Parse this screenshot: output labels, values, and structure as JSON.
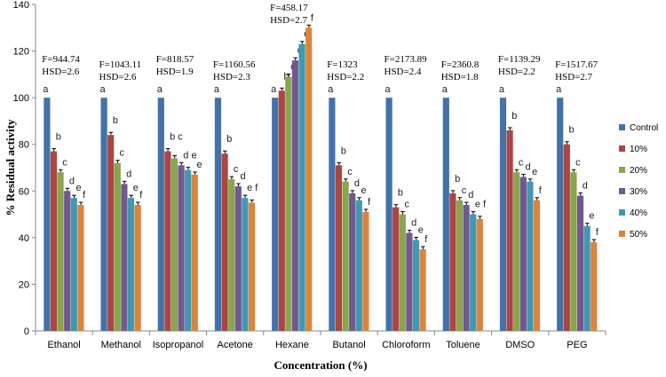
{
  "chart_data": {
    "type": "bar",
    "title": "",
    "xlabel": "Concentration (%)",
    "ylabel": "% Residual activity",
    "ylim": [
      0,
      140
    ],
    "yticks": [
      0,
      20,
      40,
      60,
      80,
      100,
      120,
      140
    ],
    "grid": false,
    "legend_position": "right",
    "categories": [
      "Ethanol",
      "Methanol",
      "Isopropanol",
      "Acetone",
      "Hexane",
      "Butanol",
      "Chloroform",
      "Toluene",
      "DMSO",
      "PEG"
    ],
    "series": [
      {
        "name": "Control",
        "color": "#4472A8",
        "values": [
          100,
          100,
          100,
          100,
          100,
          100,
          100,
          100,
          100,
          100
        ]
      },
      {
        "name": "10%",
        "color": "#AA4643",
        "values": [
          77,
          84,
          77,
          76,
          103,
          71,
          53,
          59,
          86,
          80
        ]
      },
      {
        "name": "20%",
        "color": "#89A54E",
        "values": [
          68,
          72,
          74,
          65,
          109,
          64,
          50,
          56,
          68,
          68
        ]
      },
      {
        "name": "30%",
        "color": "#71588F",
        "values": [
          60,
          63,
          71,
          62,
          116,
          59,
          42,
          54,
          66,
          58
        ]
      },
      {
        "name": "40%",
        "color": "#4198AF",
        "values": [
          57,
          57,
          69,
          57,
          123,
          56,
          39,
          50,
          64,
          45
        ]
      },
      {
        "name": "50%",
        "color": "#DB843D",
        "values": [
          54,
          54,
          67,
          55,
          130,
          51,
          35,
          48,
          56,
          38
        ]
      }
    ],
    "letters": [
      [
        "a",
        "b",
        "c",
        "d",
        "e",
        "f"
      ],
      [
        "a",
        "b",
        "c",
        "d",
        "e",
        "f"
      ],
      [
        "a",
        "b c",
        "",
        "d e",
        "",
        "e"
      ],
      [
        "a",
        "b",
        "c",
        "d",
        "e f",
        ""
      ],
      [
        "a",
        "b",
        "c",
        "d",
        "e",
        "f"
      ],
      [
        "a",
        "b",
        "c",
        "d",
        "e",
        "f"
      ],
      [
        "a",
        "b",
        "c",
        "d",
        "e",
        "f"
      ],
      [
        "a",
        "b",
        "c",
        "d",
        "e f",
        ""
      ],
      [
        "a",
        "b",
        "c",
        "d",
        "e",
        "f"
      ],
      [
        "a",
        "b",
        "c",
        "d",
        "e",
        "f"
      ]
    ],
    "annotations": [
      {
        "f": "F=944.74",
        "hsd": "HSD=2.6"
      },
      {
        "f": "F=1043.11",
        "hsd": "HSD=2.6"
      },
      {
        "f": "F=818.57",
        "hsd": "HSD=1.9"
      },
      {
        "f": "F=1160.56",
        "hsd": "HSD=2.3"
      },
      {
        "f": "F=458.17",
        "hsd": "HSD=2.7"
      },
      {
        "f": "F=1323",
        "hsd": "HSD=2.2"
      },
      {
        "f": "F=2173.89",
        "hsd": "HSD=2.4"
      },
      {
        "f": "F=2360.8",
        "hsd": "HSD=1.8"
      },
      {
        "f": "F=1139.29",
        "hsd": "HSD=2.2"
      },
      {
        "f": "F=1517.67",
        "hsd": "HSD=2.7"
      }
    ]
  }
}
